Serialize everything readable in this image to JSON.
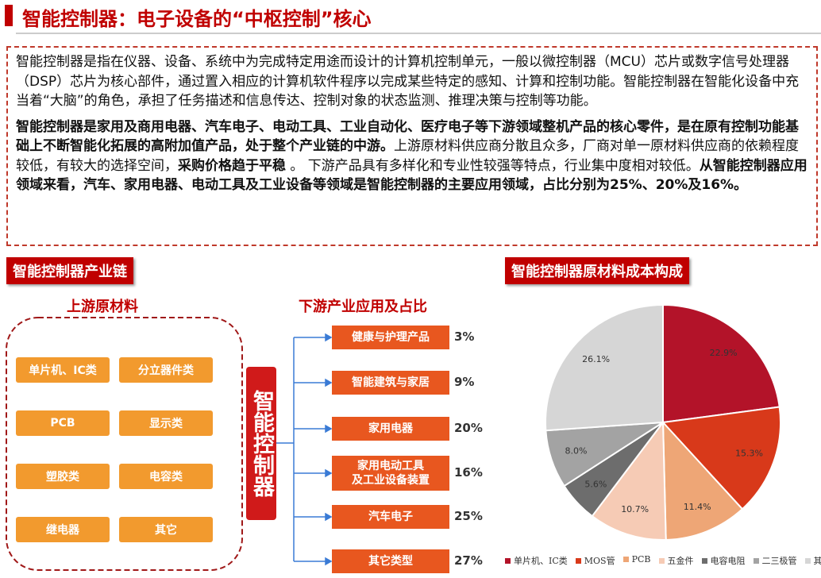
{
  "header": {
    "title": "智能控制器：电子设备的“中枢控制”核心"
  },
  "intro": {
    "paragraph1": "智能控制器是指在仪器、设备、系统中为完成特定用途而设计的计算机控制单元，一般以微控制器（MCU）芯片或数字信号处理器（DSP）芯片为核心部件，通过置入相应的计算机软件程序以完成某些特定的感知、计算和控制功能。智能控制器在智能化设备中充当着“大脑”的角色，承担了任务描述和信息传达、控制对象的状态监测、推理决策与控制等功能。",
    "paragraph2": [
      {
        "text": "智能控制器是家用及商用电器、汽车电子、电动工具、工业自动化、医疗电子等下游领域整机产品的核心零件，是在原有控制功能基础上不断智能化拓展的高附加值产品，处于整个产业链的中游。",
        "bold": true
      },
      {
        "text": "上游原材料供应商分散且众多，厂商对单一原材料供应商的依赖程度较低，有较大的选择空间，",
        "bold": false
      },
      {
        "text": "采购价格趋于平稳",
        "bold": true
      },
      {
        "text": " 。 下游产品具有多样化和专业性较强等特点，行业集中度相对较低。",
        "bold": false
      },
      {
        "text": "从智能控制器应用领域来看，汽车、家用电器、电动工具及工业设备等领域是智能控制器的主要应用领域，占比分别为25%、20%及16%。",
        "bold": true
      }
    ]
  },
  "chain": {
    "title": "智能控制器产业链",
    "upstream_title": "上游原材料",
    "upstream": [
      "单片机、IC类",
      "分立器件类",
      "PCB",
      "显示类",
      "塑胶类",
      "电容类",
      "继电器",
      "其它"
    ],
    "center": "智能控制器",
    "downstream_title": "下游产业应用及占比",
    "downstream": [
      {
        "name": "健康与护理产品",
        "share": "3%"
      },
      {
        "name": "智能建筑与家居",
        "share": "9%"
      },
      {
        "name": "家用电器",
        "share": "20%"
      },
      {
        "name": "家用电动工具\n及工业设备装置",
        "share": "16%"
      },
      {
        "name": "汽车电子",
        "share": "25%"
      },
      {
        "name": "其它类型",
        "share": "27%"
      }
    ]
  },
  "chart_data": {
    "type": "pie",
    "title": "智能控制器原材料成本构成",
    "categories": [
      "单片机、IC类",
      "MOS管",
      "PCB",
      "五金件",
      "电容电阻",
      "二三极管",
      "其它"
    ],
    "values": [
      22.9,
      15.3,
      11.4,
      10.7,
      5.6,
      8.0,
      26.1
    ],
    "value_labels": [
      "22.9%",
      "15.3%",
      "11.4%",
      "10.7%",
      "5.6%",
      "8.0%",
      "26.1%"
    ],
    "colors": [
      "#b31329",
      "#d8391a",
      "#eea676",
      "#f6cbb5",
      "#6d6d6d",
      "#a3a3a3",
      "#d6d6d6"
    ]
  }
}
